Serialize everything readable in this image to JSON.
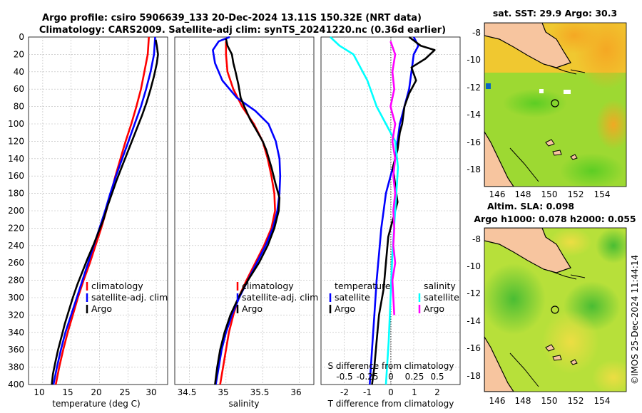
{
  "title_line1": "Argo profile: csiro 5906639_133 20-Dec-2024 13.11S 150.32E (NRT data)",
  "title_line2": "Climatology: CARS2009. Satellite-adj clim: synTS_20241220.nc (0.36d earlier)",
  "timestamp": "©IMOS 25-Dec-2024 11:44:14",
  "colors": {
    "climatology": "#ff0000",
    "satellite": "#0000ff",
    "argo": "#000000",
    "sat_salinity": "#00ffff",
    "argo_salinity": "#ff00ff",
    "land": "#f7c59f"
  },
  "chart_data": [
    {
      "type": "line",
      "id": "temperature",
      "xlabel": "temperature (deg C)",
      "ylabel": "",
      "xlim": [
        7.5,
        32
      ],
      "ylim": [
        0,
        400
      ],
      "xticks": [
        "10",
        "15",
        "20",
        "25",
        "30"
      ],
      "yticks": [
        "0",
        "20",
        "40",
        "60",
        "80",
        "100",
        "120",
        "140",
        "160",
        "180",
        "200",
        "220",
        "240",
        "260",
        "280",
        "300",
        "320",
        "340",
        "360",
        "380",
        "400"
      ],
      "legend": [
        "climatology",
        "satellite-adj. clim",
        "Argo"
      ],
      "series": [
        {
          "name": "climatology",
          "color": "#ff0000",
          "points": [
            [
              28.7,
              0
            ],
            [
              28.5,
              20
            ],
            [
              27.9,
              40
            ],
            [
              27.3,
              60
            ],
            [
              26.5,
              80
            ],
            [
              25.6,
              100
            ],
            [
              24.6,
              120
            ],
            [
              23.7,
              140
            ],
            [
              22.8,
              160
            ],
            [
              22.0,
              180
            ],
            [
              21.2,
              200
            ],
            [
              20.3,
              220
            ],
            [
              19.3,
              240
            ],
            [
              18.3,
              260
            ],
            [
              17.2,
              280
            ],
            [
              16.2,
              300
            ],
            [
              15.3,
              320
            ],
            [
              14.4,
              340
            ],
            [
              13.6,
              360
            ],
            [
              12.9,
              380
            ],
            [
              12.3,
              400
            ]
          ]
        },
        {
          "name": "satellite-adj. clim",
          "color": "#0000ff",
          "points": [
            [
              29.8,
              0
            ],
            [
              29.6,
              20
            ],
            [
              29.0,
              40
            ],
            [
              28.2,
              60
            ],
            [
              27.3,
              80
            ],
            [
              26.2,
              100
            ],
            [
              25.1,
              120
            ],
            [
              24.0,
              140
            ],
            [
              22.9,
              160
            ],
            [
              21.9,
              180
            ],
            [
              21.0,
              200
            ],
            [
              20.0,
              220
            ],
            [
              19.0,
              240
            ],
            [
              18.0,
              260
            ],
            [
              17.0,
              280
            ],
            [
              16.0,
              300
            ],
            [
              15.0,
              320
            ],
            [
              14.0,
              340
            ],
            [
              13.2,
              360
            ],
            [
              12.5,
              380
            ],
            [
              11.9,
              400
            ]
          ]
        },
        {
          "name": "Argo",
          "color": "#000000",
          "points": [
            [
              29.9,
              3
            ],
            [
              30.1,
              10
            ],
            [
              30.3,
              20
            ],
            [
              30.1,
              30
            ],
            [
              29.6,
              45
            ],
            [
              29.0,
              60
            ],
            [
              28.3,
              75
            ],
            [
              27.5,
              90
            ],
            [
              26.6,
              105
            ],
            [
              25.7,
              120
            ],
            [
              24.8,
              135
            ],
            [
              23.9,
              150
            ],
            [
              23.0,
              165
            ],
            [
              22.2,
              180
            ],
            [
              21.4,
              195
            ],
            [
              20.7,
              210
            ],
            [
              19.8,
              225
            ],
            [
              18.9,
              240
            ],
            [
              17.9,
              255
            ],
            [
              17.0,
              270
            ],
            [
              16.1,
              285
            ],
            [
              15.3,
              300
            ],
            [
              14.6,
              315
            ],
            [
              13.9,
              330
            ],
            [
              13.3,
              345
            ],
            [
              12.7,
              360
            ],
            [
              12.2,
              375
            ],
            [
              11.8,
              388
            ],
            [
              11.6,
              400
            ]
          ]
        }
      ]
    },
    {
      "type": "line",
      "id": "salinity",
      "xlabel": "salinity",
      "xlim": [
        34.3,
        36.2
      ],
      "ylim": [
        0,
        400
      ],
      "xticks": [
        "34.5",
        "35",
        "35.5",
        "36"
      ],
      "legend": [
        "climatology",
        "satellite-adj. clim",
        "Argo"
      ],
      "series": [
        {
          "name": "climatology",
          "color": "#ff0000",
          "points": [
            [
              35.0,
              5
            ],
            [
              35.0,
              20
            ],
            [
              35.02,
              40
            ],
            [
              35.1,
              60
            ],
            [
              35.22,
              80
            ],
            [
              35.38,
              100
            ],
            [
              35.5,
              120
            ],
            [
              35.57,
              140
            ],
            [
              35.62,
              160
            ],
            [
              35.66,
              180
            ],
            [
              35.67,
              200
            ],
            [
              35.62,
              220
            ],
            [
              35.52,
              240
            ],
            [
              35.4,
              260
            ],
            [
              35.28,
              280
            ],
            [
              35.17,
              300
            ],
            [
              35.1,
              320
            ],
            [
              35.04,
              340
            ],
            [
              35.0,
              360
            ],
            [
              34.96,
              380
            ],
            [
              34.92,
              400
            ]
          ]
        },
        {
          "name": "satellite-adj. clim",
          "color": "#0000ff",
          "points": [
            [
              35.05,
              0
            ],
            [
              34.9,
              5
            ],
            [
              34.82,
              15
            ],
            [
              34.85,
              30
            ],
            [
              34.95,
              50
            ],
            [
              35.15,
              70
            ],
            [
              35.4,
              85
            ],
            [
              35.58,
              100
            ],
            [
              35.68,
              120
            ],
            [
              35.73,
              140
            ],
            [
              35.74,
              160
            ],
            [
              35.73,
              180
            ],
            [
              35.7,
              200
            ],
            [
              35.64,
              220
            ],
            [
              35.54,
              240
            ],
            [
              35.42,
              260
            ],
            [
              35.3,
              280
            ],
            [
              35.18,
              300
            ],
            [
              35.08,
              320
            ],
            [
              35.0,
              340
            ],
            [
              34.94,
              360
            ],
            [
              34.9,
              380
            ],
            [
              34.86,
              400
            ]
          ]
        },
        {
          "name": "Argo",
          "color": "#000000",
          "points": [
            [
              35.0,
              2
            ],
            [
              35.02,
              10
            ],
            [
              35.08,
              20
            ],
            [
              35.1,
              30
            ],
            [
              35.13,
              40
            ],
            [
              35.17,
              55
            ],
            [
              35.2,
              70
            ],
            [
              35.25,
              80
            ],
            [
              35.33,
              95
            ],
            [
              35.4,
              105
            ],
            [
              35.5,
              120
            ],
            [
              35.55,
              130
            ],
            [
              35.62,
              150
            ],
            [
              35.68,
              170
            ],
            [
              35.73,
              185
            ],
            [
              35.72,
              200
            ],
            [
              35.66,
              220
            ],
            [
              35.57,
              240
            ],
            [
              35.45,
              260
            ],
            [
              35.3,
              280
            ],
            [
              35.17,
              300
            ],
            [
              35.06,
              320
            ],
            [
              34.98,
              340
            ],
            [
              34.92,
              360
            ],
            [
              34.88,
              380
            ],
            [
              34.85,
              400
            ]
          ]
        }
      ]
    },
    {
      "type": "line",
      "id": "difference",
      "xlabel": "T difference from climatology",
      "xlabel_top": "S difference from climatology",
      "xlim": [
        -3,
        3
      ],
      "xlim_salinity": [
        -0.75,
        0.75
      ],
      "ylim": [
        0,
        400
      ],
      "xticks": [
        "-2",
        "-1",
        "0",
        "1",
        "2"
      ],
      "xticks_salinity": [
        "-0.5",
        "-0.25",
        "0",
        "0.25",
        "0.5"
      ],
      "legend_left": [
        "temperature",
        "satellite",
        "Argo"
      ],
      "legend_right": [
        "salinity",
        "satellite",
        "Argo"
      ],
      "series": [
        {
          "name": "temperature satellite",
          "color": "#0000ff",
          "points": [
            [
              1.0,
              0
            ],
            [
              1.2,
              10
            ],
            [
              1.0,
              20
            ],
            [
              0.9,
              40
            ],
            [
              0.8,
              60
            ],
            [
              0.6,
              80
            ],
            [
              0.4,
              100
            ],
            [
              0.3,
              120
            ],
            [
              0.2,
              140
            ],
            [
              0.0,
              160
            ],
            [
              -0.2,
              180
            ],
            [
              -0.3,
              200
            ],
            [
              -0.4,
              220
            ],
            [
              -0.5,
              250
            ],
            [
              -0.6,
              280
            ],
            [
              -0.7,
              320
            ],
            [
              -0.8,
              360
            ],
            [
              -0.9,
              400
            ]
          ]
        },
        {
          "name": "temperature Argo",
          "color": "#000000",
          "points": [
            [
              0.8,
              0
            ],
            [
              1.3,
              10
            ],
            [
              1.9,
              15
            ],
            [
              1.5,
              25
            ],
            [
              0.9,
              35
            ],
            [
              1.1,
              50
            ],
            [
              0.8,
              65
            ],
            [
              0.6,
              80
            ],
            [
              0.5,
              100
            ],
            [
              0.4,
              110
            ],
            [
              0.3,
              130
            ],
            [
              0.1,
              150
            ],
            [
              0.2,
              170
            ],
            [
              0.3,
              190
            ],
            [
              0.1,
              210
            ],
            [
              -0.1,
              230
            ],
            [
              -0.2,
              260
            ],
            [
              -0.3,
              290
            ],
            [
              -0.5,
              320
            ],
            [
              -0.6,
              350
            ],
            [
              -0.7,
              380
            ],
            [
              -0.8,
              400
            ]
          ]
        },
        {
          "name": "salinity satellite",
          "color": "#00ffff",
          "points": [
            [
              -0.65,
              0
            ],
            [
              -0.55,
              10
            ],
            [
              -0.4,
              20
            ],
            [
              -0.25,
              50
            ],
            [
              -0.15,
              80
            ],
            [
              -0.05,
              100
            ],
            [
              0.05,
              120
            ],
            [
              0.08,
              150
            ],
            [
              0.05,
              200
            ],
            [
              0.02,
              250
            ],
            [
              0.0,
              300
            ],
            [
              -0.02,
              350
            ],
            [
              -0.05,
              400
            ]
          ]
        },
        {
          "name": "salinity Argo",
          "color": "#ff00ff",
          "points": [
            [
              0.0,
              5
            ],
            [
              0.05,
              20
            ],
            [
              0.02,
              40
            ],
            [
              0.04,
              60
            ],
            [
              0.0,
              80
            ],
            [
              0.05,
              100
            ],
            [
              0.02,
              120
            ],
            [
              0.05,
              140
            ],
            [
              0.03,
              160
            ],
            [
              0.05,
              180
            ],
            [
              0.03,
              200
            ],
            [
              0.04,
              220
            ],
            [
              0.03,
              240
            ],
            [
              0.05,
              260
            ],
            [
              0.02,
              280
            ],
            [
              0.03,
              300
            ],
            [
              0.04,
              320
            ]
          ]
        }
      ]
    },
    {
      "type": "heatmap",
      "id": "sst-map",
      "title": "sat. SST: 29.9 Argo: 30.3",
      "xticks": [
        "146",
        "148",
        "150",
        "152",
        "154"
      ],
      "yticks": [
        "-8",
        "-10",
        "-12",
        "-14",
        "-16",
        "-18"
      ],
      "xlim": [
        144.8,
        155.6
      ],
      "ylim": [
        -19.2,
        -7.2
      ],
      "marker": [
        150.32,
        -13.11
      ]
    },
    {
      "type": "heatmap",
      "id": "sla-map",
      "title": "Altim. SLA: 0.098",
      "subtitle": "Argo h1000: 0.078 h2000: 0.055",
      "xticks": [
        "146",
        "148",
        "150",
        "152",
        "154"
      ],
      "yticks": [
        "-8",
        "-10",
        "-12",
        "-14",
        "-16",
        "-18"
      ],
      "xlim": [
        144.8,
        155.6
      ],
      "ylim": [
        -19.2,
        -7.2
      ],
      "marker": [
        150.32,
        -13.11
      ]
    }
  ]
}
